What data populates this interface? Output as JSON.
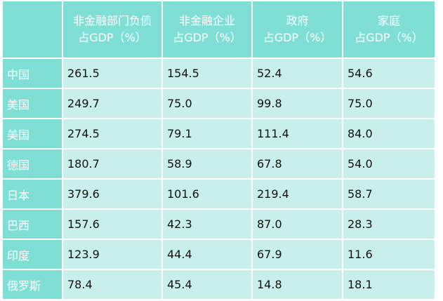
{
  "table": {
    "columns": [
      [
        "非金融部门负债",
        "占GDP（%）"
      ],
      [
        "非金融企业",
        "占GDP（%）"
      ],
      [
        "政府",
        "占GDP（%）"
      ],
      [
        "家庭",
        "占GDP（%）"
      ]
    ],
    "rows": [
      [
        "中国",
        "261.5",
        "154.5",
        "52.4",
        "54.6"
      ],
      [
        "美国",
        "249.7",
        "75.0",
        "99.8",
        "75.0"
      ],
      [
        "美国",
        "274.5",
        "79.1",
        "111.4",
        "84.0"
      ],
      [
        "德国",
        "180.7",
        "58.9",
        "67.8",
        "54.0"
      ],
      [
        "日本",
        "379.6",
        "101.6",
        "219.4",
        "58.7"
      ],
      [
        "巴西",
        "157.6",
        "42.3",
        "87.0",
        "28.3"
      ],
      [
        "印度",
        "123.9",
        "44.4",
        "67.9",
        "11.6"
      ],
      [
        "俄罗斯",
        "78.4",
        "45.4",
        "14.8",
        "18.1"
      ]
    ]
  }
}
